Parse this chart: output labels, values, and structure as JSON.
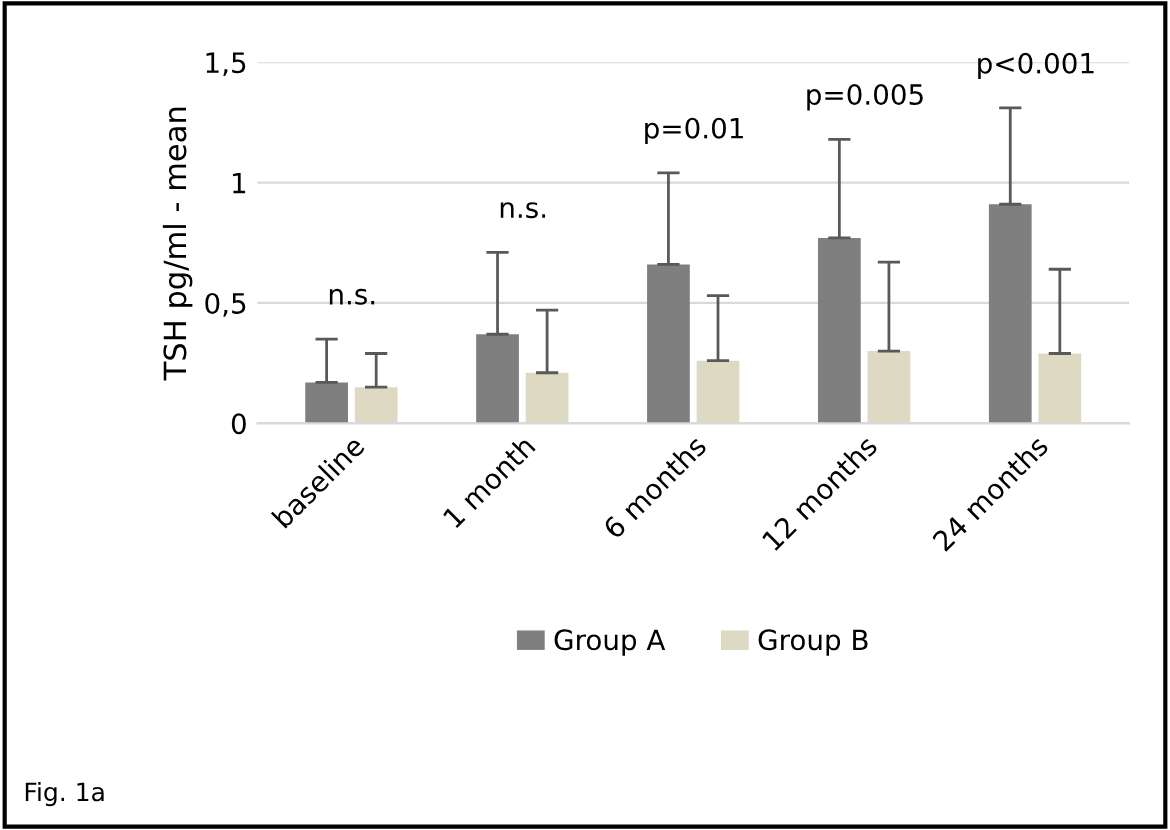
{
  "chart_data": {
    "type": "bar",
    "ylabel": "TSH pg/ml - mean",
    "categories": [
      "baseline",
      "1 month",
      "6 months",
      "12 months",
      "24 months"
    ],
    "series": [
      {
        "name": "Group A",
        "color": "#7f7f7f",
        "values": [
          0.17,
          0.37,
          0.66,
          0.77,
          0.91
        ],
        "errors": [
          [
            0.17,
            0.35
          ],
          [
            0.37,
            0.71
          ],
          [
            0.66,
            1.04
          ],
          [
            0.77,
            1.18
          ],
          [
            0.91,
            1.31
          ]
        ]
      },
      {
        "name": "Group B",
        "color": "#ddd9c3",
        "values": [
          0.15,
          0.21,
          0.26,
          0.3,
          0.29
        ],
        "errors": [
          [
            0.15,
            0.29
          ],
          [
            0.21,
            0.47
          ],
          [
            0.26,
            0.53
          ],
          [
            0.3,
            0.67
          ],
          [
            0.29,
            0.64
          ]
        ]
      }
    ],
    "ylim": [
      0,
      1.5
    ],
    "yticks": [
      0,
      {
        "value": 0.5,
        "label": "0,5"
      },
      1,
      {
        "value": 1.5,
        "label": "1,5"
      }
    ],
    "grid": "y",
    "legend": "bottom",
    "annotations": [
      "n.s.",
      "n.s.",
      "p=0.01",
      "p=0.005",
      "p<0.001",
      "Fig. 1a"
    ]
  }
}
